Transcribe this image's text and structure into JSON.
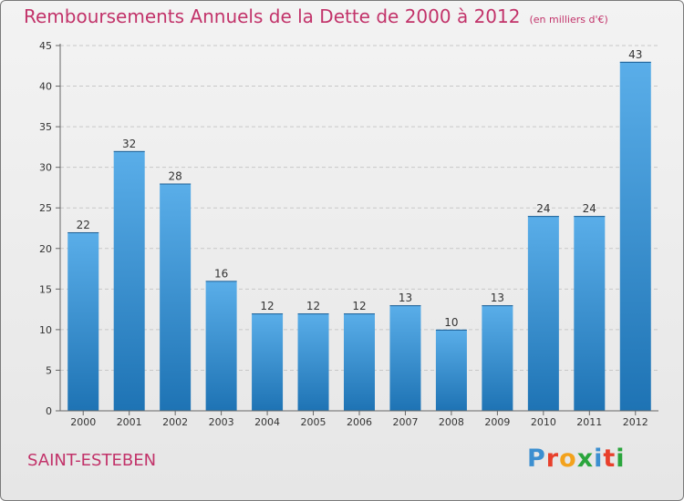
{
  "title": "Remboursements Annuels de la Dette de 2000 à 2012",
  "unit": "(en milliers d'€)",
  "commune": "SAINT-ESTEBEN",
  "logo": {
    "text": "Proxiti",
    "letter_colors": [
      "#3c8fd0",
      "#e8402c",
      "#f3a21c",
      "#2aa53c",
      "#3c8fd0",
      "#e8402c",
      "#2aa53c"
    ]
  },
  "colors": {
    "title": "#c2336a",
    "bar_top": "#5aaee9",
    "bar_bottom": "#1e73b4",
    "axis": "#666666",
    "grid": "#c8c8c8"
  },
  "chart_data": {
    "type": "bar",
    "categories": [
      "2000",
      "2001",
      "2002",
      "2003",
      "2004",
      "2005",
      "2006",
      "2007",
      "2008",
      "2009",
      "2010",
      "2011",
      "2012"
    ],
    "values": [
      22,
      32,
      28,
      16,
      12,
      12,
      12,
      13,
      10,
      13,
      24,
      24,
      43
    ],
    "ylim": [
      0,
      45
    ],
    "yticks": [
      0,
      5,
      10,
      15,
      20,
      25,
      30,
      35,
      40,
      45
    ],
    "grid": true,
    "legend": "none"
  }
}
